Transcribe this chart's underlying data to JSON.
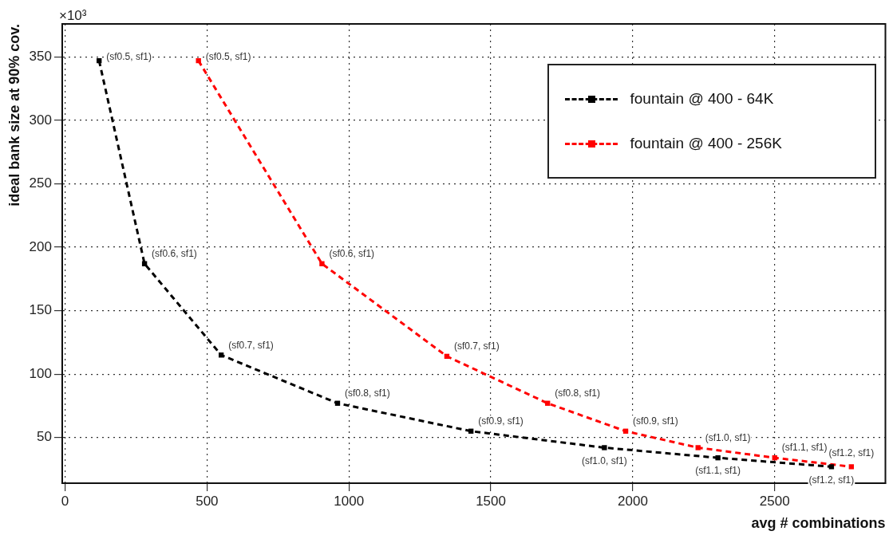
{
  "chart_data": {
    "type": "line",
    "xlabel": "avg # combinations",
    "ylabel": "ideal bank size at 90% cov.",
    "xlim": [
      -10,
      2890
    ],
    "ylim": [
      14,
      376
    ],
    "xticks": [
      0,
      500,
      1000,
      1500,
      2000,
      2500
    ],
    "yticks": [
      50,
      100,
      150,
      200,
      250,
      300,
      350
    ],
    "grid": true,
    "legend": "top right",
    "marker": "square",
    "line_style": "dashed",
    "series": [
      {
        "name": "fountain @ 400 - 64K",
        "color": "#000000",
        "x": [
          120,
          280,
          550,
          960,
          1430,
          1900,
          2300,
          2700
        ],
        "values": [
          347,
          187,
          115,
          77,
          55,
          42,
          34,
          27
        ]
      },
      {
        "name": "fountain @ 400 - 256K",
        "color": "#ff0000",
        "x": [
          470,
          905,
          1345,
          1700,
          1975,
          2230,
          2500,
          2770
        ],
        "values": [
          347,
          187,
          114,
          77,
          55,
          42,
          34,
          27
        ]
      }
    ],
    "annotations": [
      "×10³",
      {
        "text": "(sf0.5, sf1)",
        "x": 120,
        "y": 347
      },
      {
        "text": "(sf0.6, sf1)",
        "x": 280,
        "y": 187
      },
      {
        "text": "(sf0.7, sf1)",
        "x": 550,
        "y": 115
      },
      {
        "text": "(sf0.8, sf1)",
        "x": 960,
        "y": 77
      },
      {
        "text": "(sf0.9, sf1)",
        "x": 1430,
        "y": 55
      },
      {
        "text": "(sf1.0, sf1)",
        "x": 1900,
        "y": 42
      },
      {
        "text": "(sf1.1, sf1)",
        "x": 2300,
        "y": 34
      },
      {
        "text": "(sf1.2, sf1)",
        "x": 2700,
        "y": 27
      },
      {
        "text": "(sf0.5, sf1)",
        "x": 470,
        "y": 347
      },
      {
        "text": "(sf0.6, sf1)",
        "x": 905,
        "y": 187
      },
      {
        "text": "(sf0.7, sf1)",
        "x": 1345,
        "y": 114
      },
      {
        "text": "(sf0.8, sf1)",
        "x": 1700,
        "y": 77
      },
      {
        "text": "(sf0.9, sf1)",
        "x": 1975,
        "y": 55
      },
      {
        "text": "(sf1.0, sf1)",
        "x": 2230,
        "y": 42
      },
      {
        "text": "(sf1.1, sf1)",
        "x": 2500,
        "y": 34
      },
      {
        "text": "(sf1.2, sf1)",
        "x": 2770,
        "y": 27
      }
    ]
  }
}
